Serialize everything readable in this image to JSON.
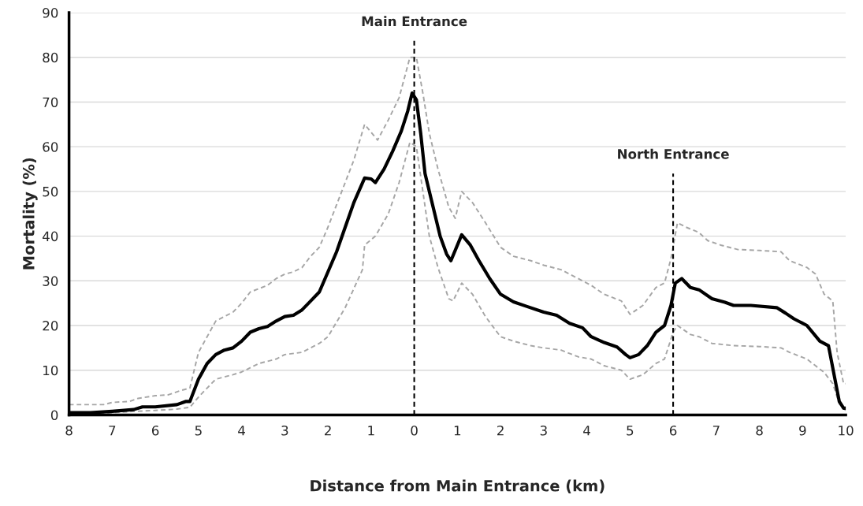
{
  "chart_data": {
    "type": "line",
    "xlabel": "Distance from Main Entrance (km)",
    "ylabel": "Mortality (%)",
    "xlim": [
      -8,
      10
    ],
    "ylim": [
      0,
      90
    ],
    "xticks": [
      {
        "value": -8,
        "label": "8"
      },
      {
        "value": -7,
        "label": "7"
      },
      {
        "value": -6,
        "label": "6"
      },
      {
        "value": -5,
        "label": "5"
      },
      {
        "value": -4,
        "label": "4"
      },
      {
        "value": -3,
        "label": "3"
      },
      {
        "value": -2,
        "label": "2"
      },
      {
        "value": -1,
        "label": "1"
      },
      0,
      1,
      2,
      3,
      4,
      5,
      6,
      7,
      8,
      9,
      10
    ],
    "yticks": [
      0,
      10,
      20,
      30,
      40,
      50,
      60,
      70,
      80,
      90
    ],
    "grid": "y",
    "series": [
      {
        "color": "#a6a6a6",
        "line_style": "dashed",
        "x": [
          -8,
          -7.2,
          -7,
          -6.6,
          -6.4,
          -6,
          -5.7,
          -5.4,
          -5.2,
          -5,
          -4.6,
          -4.4,
          -4.2,
          -4,
          -3.8,
          -3.4,
          -3.2,
          -3,
          -2.8,
          -2.6,
          -2.4,
          -2.2,
          -2,
          -1.8,
          -1.6,
          -1.4,
          -1.15,
          -0.85,
          -0.6,
          -0.35,
          -0.1,
          0.05,
          0.2,
          0.35,
          0.55,
          0.8,
          0.95,
          1.1,
          1.35,
          1.65,
          2,
          2.3,
          2.7,
          3,
          3.4,
          3.8,
          4.1,
          4.4,
          4.8,
          5,
          5.3,
          5.6,
          5.8,
          5.95,
          6.1,
          6.3,
          6.6,
          6.8,
          7.1,
          7.5,
          8,
          8.5,
          8.7,
          9.1,
          9.3,
          9.5,
          9.7,
          9.8,
          9.95,
          10
        ],
        "values": [
          2.3,
          2.3,
          2.8,
          3,
          3.7,
          4.3,
          4.5,
          5.5,
          6,
          14,
          21,
          22,
          23,
          25,
          27.5,
          29,
          30.5,
          31.5,
          32,
          33,
          35.5,
          37.5,
          42,
          47,
          52,
          57,
          65,
          61.5,
          66,
          71,
          80,
          80,
          72,
          63,
          55,
          46.5,
          44,
          50,
          47.5,
          43,
          37.5,
          35.5,
          34.5,
          33.5,
          32.5,
          30.5,
          29,
          27,
          25.5,
          22.5,
          24.5,
          28.5,
          29.5,
          35,
          43,
          42,
          40.8,
          39,
          38,
          37,
          36.8,
          36.5,
          34.5,
          33,
          31.5,
          27,
          25.5,
          14,
          7,
          7
        ]
      },
      {
        "color": "#a6a6a6",
        "line_style": "dashed",
        "x": [
          -8,
          -7.2,
          -7,
          -6.5,
          -6,
          -5.5,
          -5.2,
          -5,
          -4.6,
          -4.2,
          -4,
          -3.6,
          -3.2,
          -3,
          -2.6,
          -2.2,
          -2,
          -1.6,
          -1.2,
          -1.15,
          -0.9,
          -0.6,
          -0.35,
          -0.1,
          0.05,
          0.2,
          0.35,
          0.55,
          0.8,
          0.9,
          1.1,
          1.35,
          1.65,
          2,
          2.3,
          2.7,
          3,
          3.4,
          3.8,
          4.1,
          4.4,
          4.8,
          5,
          5.3,
          5.6,
          5.8,
          6.0,
          6.1,
          6.4,
          6.6,
          6.9,
          7.4,
          8,
          8.5,
          8.7,
          9.1,
          9.3,
          9.5,
          9.7,
          9.85,
          10
        ],
        "values": [
          0.3,
          0.3,
          0.5,
          0.8,
          1,
          1.3,
          1.7,
          4,
          8,
          9,
          9.6,
          11.5,
          12.5,
          13.5,
          14,
          16,
          17.5,
          24,
          32.5,
          38,
          40,
          45,
          52,
          61,
          60,
          50,
          40,
          33,
          26,
          25.5,
          29.5,
          27,
          22,
          17.5,
          16.5,
          15.5,
          15,
          14.5,
          13,
          12.5,
          11,
          10,
          8,
          9,
          11.5,
          12.5,
          18.5,
          20,
          18,
          17.5,
          16,
          15.5,
          15.3,
          15,
          14,
          12.5,
          11,
          9.5,
          7,
          2.5,
          1
        ]
      },
      {
        "color": "#000000",
        "line_style": "solid",
        "x": [
          -8,
          -7.5,
          -7,
          -6.5,
          -6.3,
          -6,
          -5.5,
          -5.3,
          -5.2,
          -5,
          -4.8,
          -4.6,
          -4.4,
          -4.2,
          -4,
          -3.8,
          -3.6,
          -3.4,
          -3.2,
          -3,
          -2.8,
          -2.6,
          -2.4,
          -2.2,
          -2,
          -1.8,
          -1.6,
          -1.4,
          -1.15,
          -1,
          -0.9,
          -0.7,
          -0.5,
          -0.3,
          -0.15,
          -0.05,
          0.05,
          0.15,
          0.25,
          0.4,
          0.6,
          0.75,
          0.85,
          1.1,
          1.3,
          1.5,
          1.75,
          2,
          2.3,
          2.6,
          3,
          3.3,
          3.6,
          3.9,
          4.1,
          4.4,
          4.7,
          4.9,
          5,
          5.2,
          5.4,
          5.6,
          5.8,
          5.95,
          6.05,
          6.2,
          6.4,
          6.6,
          6.9,
          7.2,
          7.4,
          7.8,
          8.4,
          8.6,
          8.8,
          9.1,
          9.4,
          9.6,
          9.75,
          9.85,
          9.95,
          10
        ],
        "values": [
          0.5,
          0.5,
          0.8,
          1.2,
          1.8,
          1.8,
          2.3,
          3,
          3,
          8,
          11.5,
          13.5,
          14.5,
          15,
          16.5,
          18.5,
          19.3,
          19.8,
          21,
          22,
          22.3,
          23.5,
          25.5,
          27.5,
          32,
          36.5,
          42,
          47.5,
          53,
          52.8,
          52,
          55,
          59,
          63.5,
          68,
          72,
          70.5,
          63,
          54,
          48,
          40,
          36,
          34.5,
          40.3,
          38,
          34.5,
          30.5,
          27,
          25.3,
          24.3,
          23,
          22.3,
          20.5,
          19.5,
          17.5,
          16.2,
          15.2,
          13.5,
          12.8,
          13.5,
          15.5,
          18.5,
          20,
          24.5,
          29.5,
          30.5,
          28.5,
          28,
          26,
          25.2,
          24.5,
          24.5,
          24,
          22.8,
          21.5,
          20,
          16.5,
          15.5,
          8,
          3,
          1.5,
          1.5
        ]
      }
    ],
    "ref_lines": [
      {
        "axis": "x",
        "value": 0,
        "label": "Main Entrance",
        "color": "#000000",
        "line_style": "dashed"
      },
      {
        "axis": "x",
        "value": 6,
        "label": "North Entrance",
        "color": "#000000",
        "line_style": "dashed"
      }
    ]
  }
}
